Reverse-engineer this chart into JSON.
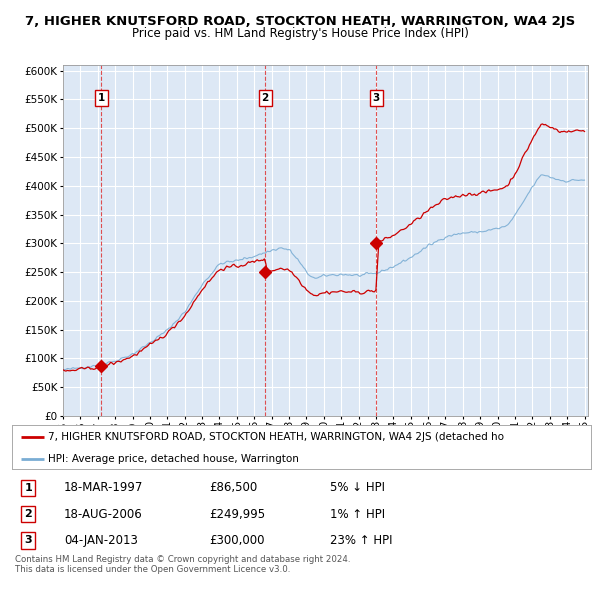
{
  "title": "7, HIGHER KNUTSFORD ROAD, STOCKTON HEATH, WARRINGTON, WA4 2JS",
  "subtitle": "Price paid vs. HM Land Registry's House Price Index (HPI)",
  "red_line_label": "7, HIGHER KNUTSFORD ROAD, STOCKTON HEATH, WARRINGTON, WA4 2JS (detached ho",
  "blue_line_label": "HPI: Average price, detached house, Warrington",
  "footer1": "Contains HM Land Registry data © Crown copyright and database right 2024.",
  "footer2": "This data is licensed under the Open Government Licence v3.0.",
  "transactions": [
    {
      "num": 1,
      "date": "18-MAR-1997",
      "price": "£86,500",
      "hpi": "5% ↓ HPI",
      "year": 1997.21,
      "value": 86500
    },
    {
      "num": 2,
      "date": "18-AUG-2006",
      "price": "£249,995",
      "hpi": "1% ↑ HPI",
      "year": 2006.63,
      "value": 249995
    },
    {
      "num": 3,
      "date": "04-JAN-2013",
      "price": "£300,000",
      "hpi": "23% ↑ HPI",
      "year": 2013.01,
      "value": 300000
    }
  ],
  "ylim": [
    0,
    610000
  ],
  "xlim_start": 1995.5,
  "xlim_end": 2025.2,
  "bg_color": "#dde8f5",
  "plot_bg": "#dde8f5",
  "grid_color": "#ffffff",
  "red_color": "#cc0000",
  "blue_color": "#7aadd4",
  "dashed_color": "#dd3333",
  "marker_color": "#cc0000",
  "title_fontsize": 9.5,
  "subtitle_fontsize": 8.5,
  "tick_fontsize": 7.5,
  "legend_fontsize": 8
}
